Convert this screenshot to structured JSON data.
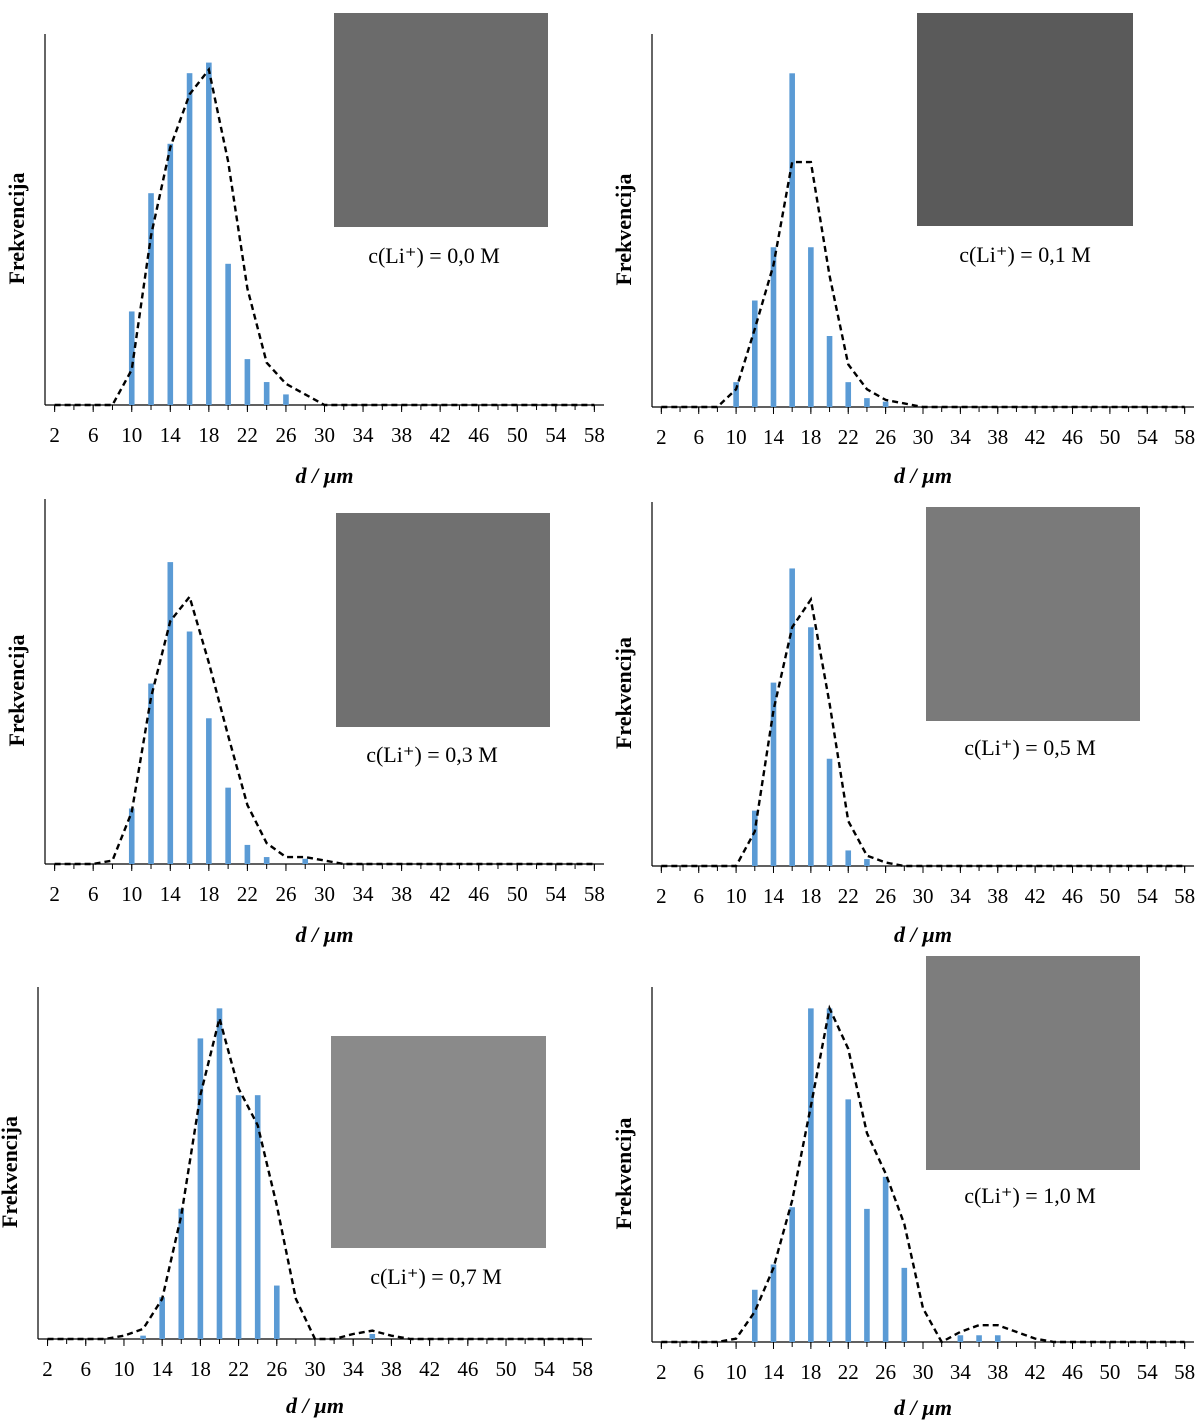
{
  "chart_data": [
    {
      "type": "bar",
      "xlabel": "d / µm",
      "ylabel": "Frekvencija",
      "annotation": "c(Li⁺) = 0,0 M",
      "x": [
        2,
        4,
        6,
        8,
        10,
        12,
        14,
        16,
        18,
        20,
        22,
        24,
        26,
        28,
        30,
        32,
        34,
        36,
        38,
        40,
        42,
        44,
        46,
        48,
        50,
        52,
        54,
        56,
        58
      ],
      "xlim": [
        1,
        59
      ],
      "xticks": [
        2,
        6,
        10,
        14,
        18,
        22,
        26,
        30,
        34,
        38,
        42,
        46,
        50,
        54,
        58
      ],
      "ylim": [
        0,
        100
      ],
      "series": [
        {
          "type": "bar",
          "color": "#5b9bd5",
          "values": [
            0,
            0,
            0,
            0,
            26.5,
            60,
            74,
            94,
            97,
            40,
            13,
            6.5,
            3,
            0,
            0,
            0,
            0,
            0,
            0,
            0,
            0,
            0,
            0,
            0,
            0,
            0,
            0,
            0,
            0
          ]
        },
        {
          "type": "line",
          "color": "#000000",
          "dashed": true,
          "values": [
            0,
            0,
            0,
            0,
            10,
            48,
            73,
            88,
            95,
            69,
            33,
            12,
            6,
            3,
            0,
            0,
            0,
            0,
            0,
            0,
            0,
            0,
            0,
            0,
            0,
            0,
            0,
            0,
            0
          ]
        }
      ]
    },
    {
      "type": "bar",
      "xlabel": "d / µm",
      "ylabel": "Frekvencija",
      "annotation": "c(Li⁺) = 0,1 M",
      "x": [
        2,
        4,
        6,
        8,
        10,
        12,
        14,
        16,
        18,
        20,
        22,
        24,
        26,
        28,
        30,
        32,
        34,
        36,
        38,
        40,
        42,
        44,
        46,
        48,
        50,
        52,
        54,
        56,
        58
      ],
      "xlim": [
        1,
        59
      ],
      "xticks": [
        2,
        6,
        10,
        14,
        18,
        22,
        26,
        30,
        34,
        38,
        42,
        46,
        50,
        54,
        58
      ],
      "ylim": [
        0,
        100
      ],
      "series": [
        {
          "type": "bar",
          "color": "#5b9bd5",
          "values": [
            0,
            0,
            0,
            0,
            7,
            30,
            45,
            94,
            45,
            20,
            7,
            2.5,
            1.5,
            0,
            0,
            0,
            0,
            0,
            0,
            0,
            0,
            0,
            0,
            0,
            0,
            0,
            0,
            0,
            0
          ]
        },
        {
          "type": "line",
          "color": "#000000",
          "dashed": true,
          "values": [
            0,
            0,
            0,
            0,
            5,
            22,
            40,
            69,
            69,
            37,
            12,
            5,
            2,
            1,
            0,
            0,
            0,
            0,
            0,
            0,
            0,
            0,
            0,
            0,
            0,
            0,
            0,
            0,
            0
          ]
        }
      ]
    },
    {
      "type": "bar",
      "xlabel": "d / µm",
      "ylabel": "Frekvencija",
      "annotation": "c(Li⁺) = 0,3 M",
      "x": [
        2,
        4,
        6,
        8,
        10,
        12,
        14,
        16,
        18,
        20,
        22,
        24,
        26,
        28,
        30,
        32,
        34,
        36,
        38,
        40,
        42,
        44,
        46,
        48,
        50,
        52,
        54,
        56,
        58
      ],
      "xlim": [
        1,
        59
      ],
      "xticks": [
        2,
        6,
        10,
        14,
        18,
        22,
        26,
        30,
        34,
        38,
        42,
        46,
        50,
        54,
        58
      ],
      "ylim": [
        0,
        100
      ],
      "series": [
        {
          "type": "bar",
          "color": "#5b9bd5",
          "values": [
            0,
            0,
            0,
            0,
            16,
            52,
            87,
            67,
            42,
            22,
            5.5,
            2,
            0,
            1.5,
            0,
            0,
            0,
            0,
            0,
            0,
            0,
            0,
            0,
            0,
            0,
            0,
            0,
            0,
            0
          ]
        },
        {
          "type": "line",
          "color": "#000000",
          "dashed": true,
          "values": [
            0,
            0,
            0,
            1,
            15,
            48,
            70,
            77,
            58,
            37,
            17,
            6,
            2,
            2,
            1,
            0,
            0,
            0,
            0,
            0,
            0,
            0,
            0,
            0,
            0,
            0,
            0,
            0,
            0
          ]
        }
      ]
    },
    {
      "type": "bar",
      "xlabel": "d / µm",
      "ylabel": "Frekvencija",
      "annotation": "c(Li⁺) = 0,5 M",
      "x": [
        2,
        4,
        6,
        8,
        10,
        12,
        14,
        16,
        18,
        20,
        22,
        24,
        26,
        28,
        30,
        32,
        34,
        36,
        38,
        40,
        42,
        44,
        46,
        48,
        50,
        52,
        54,
        56,
        58
      ],
      "xlim": [
        1,
        59
      ],
      "xticks": [
        2,
        6,
        10,
        14,
        18,
        22,
        26,
        30,
        34,
        38,
        42,
        46,
        50,
        54,
        58
      ],
      "ylim": [
        0,
        100
      ],
      "series": [
        {
          "type": "bar",
          "color": "#5b9bd5",
          "values": [
            0,
            0,
            0,
            0,
            0,
            16,
            53,
            86,
            69,
            31,
            4.5,
            2,
            0,
            0,
            0,
            0,
            0,
            0,
            0,
            0,
            0,
            0,
            0,
            0,
            0,
            0,
            0,
            0,
            0
          ]
        },
        {
          "type": "line",
          "color": "#000000",
          "dashed": true,
          "values": [
            0,
            0,
            0,
            0,
            0,
            10,
            45,
            69,
            77,
            47,
            13,
            3,
            1,
            0,
            0,
            0,
            0,
            0,
            0,
            0,
            0,
            0,
            0,
            0,
            0,
            0,
            0,
            0,
            0
          ]
        }
      ]
    },
    {
      "type": "bar",
      "xlabel": "d / µm",
      "ylabel": "Frekvencija",
      "annotation": "c(Li⁺) = 0,7 M",
      "x": [
        2,
        4,
        6,
        8,
        10,
        12,
        14,
        16,
        18,
        20,
        22,
        24,
        26,
        28,
        30,
        32,
        34,
        36,
        38,
        40,
        42,
        44,
        46,
        48,
        50,
        52,
        54,
        56,
        58
      ],
      "xlim": [
        1,
        59
      ],
      "xticks": [
        2,
        6,
        10,
        14,
        18,
        22,
        26,
        30,
        34,
        38,
        42,
        46,
        50,
        54,
        58
      ],
      "ylim": [
        0,
        100
      ],
      "series": [
        {
          "type": "bar",
          "color": "#5b9bd5",
          "values": [
            0,
            0,
            0,
            0,
            0,
            1,
            12.5,
            39,
            90,
            99,
            73,
            73,
            16,
            0,
            0,
            0,
            0,
            1.5,
            0,
            0,
            0,
            0,
            0,
            0,
            0,
            0,
            0,
            0,
            0
          ]
        },
        {
          "type": "line",
          "color": "#000000",
          "dashed": true,
          "values": [
            0,
            0,
            0,
            0,
            1,
            3,
            12,
            37,
            73,
            96,
            75,
            64,
            40,
            12,
            0,
            0,
            1.5,
            2.5,
            1,
            0,
            0,
            0,
            0,
            0,
            0,
            0,
            0,
            0,
            0
          ]
        }
      ]
    },
    {
      "type": "bar",
      "xlabel": "d / µm",
      "ylabel": "Frekvencija",
      "annotation": "c(Li⁺) = 1,0 M",
      "x": [
        2,
        4,
        6,
        8,
        10,
        12,
        14,
        16,
        18,
        20,
        22,
        24,
        26,
        28,
        30,
        32,
        34,
        36,
        38,
        40,
        42,
        44,
        46,
        48,
        50,
        52,
        54,
        56,
        58
      ],
      "xlim": [
        1,
        59
      ],
      "xticks": [
        2,
        6,
        10,
        14,
        18,
        22,
        26,
        30,
        34,
        38,
        42,
        46,
        50,
        54,
        58
      ],
      "ylim": [
        0,
        100
      ],
      "series": [
        {
          "type": "bar",
          "color": "#5b9bd5",
          "values": [
            0,
            0,
            0,
            0,
            0,
            15.5,
            23,
            40,
            99,
            99,
            72,
            39.5,
            49,
            22,
            0,
            0,
            2,
            2,
            2,
            0,
            0,
            0,
            0,
            0,
            0,
            0,
            0,
            0,
            0
          ]
        },
        {
          "type": "line",
          "color": "#000000",
          "dashed": true,
          "values": [
            0,
            0,
            0,
            0,
            1,
            9,
            22,
            42,
            70,
            99,
            87,
            62,
            50,
            35,
            10,
            0,
            3,
            5,
            5,
            3,
            1,
            0,
            0,
            0,
            0,
            0,
            0,
            0,
            0
          ]
        }
      ]
    }
  ]
}
